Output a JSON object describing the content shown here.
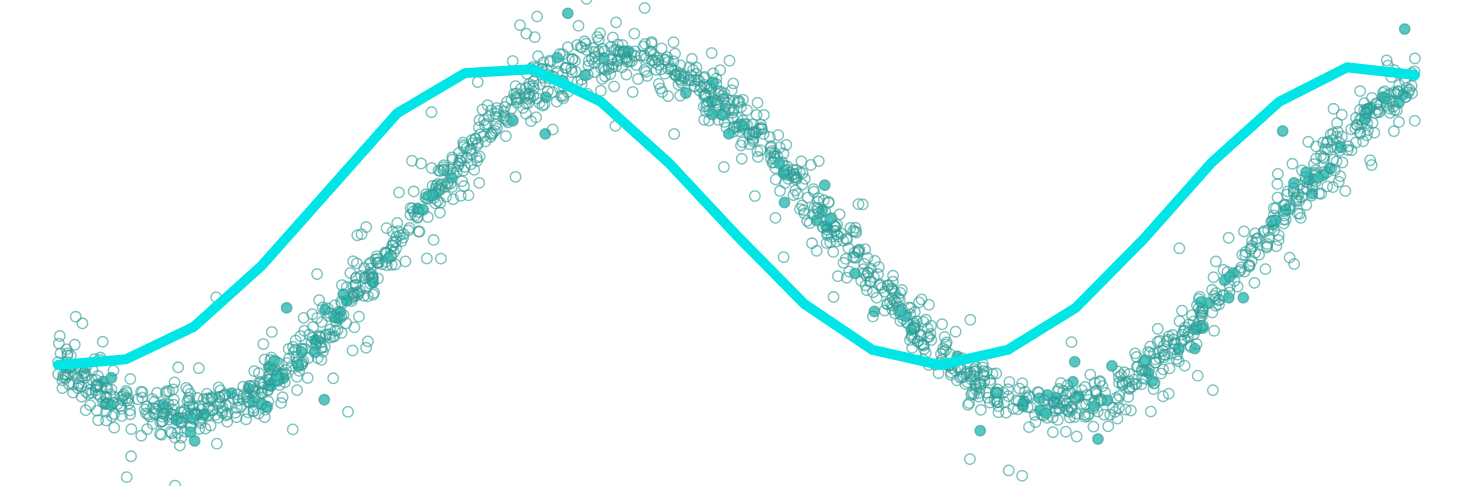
{
  "chart_data": {
    "type": "scatter",
    "title": "",
    "xlabel": "",
    "ylabel": "",
    "grid": false,
    "axes_visible": false,
    "xlim": [
      0,
      1
    ],
    "ylim": [
      -1.15,
      1.25
    ],
    "colors": {
      "background": "#ffffff",
      "points_outline": "#2a9d96",
      "points_fill_light": "#a8e0dc",
      "points_fill_highlight": "#3bbdb5",
      "fit_line": "#00e6e6"
    },
    "series": [
      {
        "type": "scatter",
        "style": "hollow-circles",
        "n_points": 1800,
        "true_curve": "sine",
        "noise": "heteroscedastic"
      },
      {
        "type": "line",
        "style": "thick-smooth",
        "x": [
          0.0,
          0.05,
          0.1,
          0.15,
          0.2,
          0.25,
          0.3,
          0.35,
          0.4,
          0.45,
          0.5,
          0.55,
          0.6,
          0.65,
          0.7,
          0.75,
          0.8,
          0.85,
          0.9,
          0.95,
          1.0
        ],
        "y": [
          -0.6,
          -0.57,
          -0.4,
          -0.08,
          0.32,
          0.72,
          0.93,
          0.95,
          0.78,
          0.46,
          0.08,
          -0.28,
          -0.52,
          -0.6,
          -0.52,
          -0.3,
          0.06,
          0.46,
          0.78,
          0.96,
          0.92
        ]
      }
    ]
  }
}
